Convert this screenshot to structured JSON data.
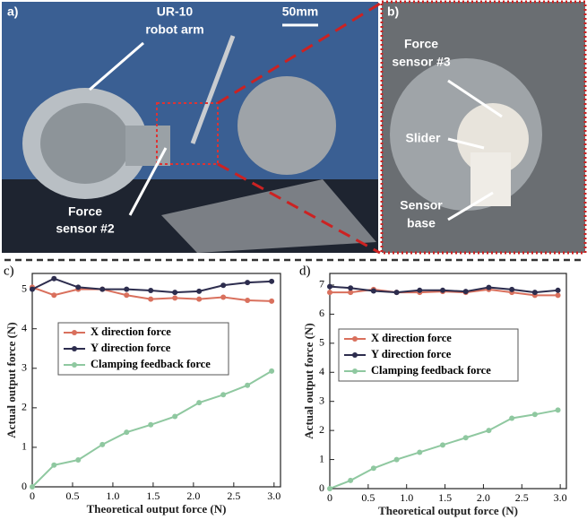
{
  "photos": {
    "panel_a": {
      "label": "a)",
      "arm_label": [
        "UR-10",
        "robot arm"
      ],
      "scale_bar": "50mm",
      "sensor_label": [
        "Force",
        "sensor #2"
      ]
    },
    "panel_b": {
      "label": "b)",
      "sensor_label": [
        "Force",
        "sensor #3"
      ],
      "slider": "Slider",
      "base_label": [
        "Sensor",
        "base"
      ]
    }
  },
  "chart_data": [
    {
      "type": "line",
      "panel_label": "c)",
      "xlabel": "Theoretical output force (N)",
      "ylabel": "Actual output force (N)",
      "x": [
        0,
        0.27,
        0.57,
        0.87,
        1.17,
        1.47,
        1.77,
        2.07,
        2.37,
        2.67,
        2.97
      ],
      "xlim": [
        0,
        3.08
      ],
      "xticks": [
        0,
        0.5,
        {
          "value": 1,
          "label": "1.0"
        },
        1.5,
        {
          "value": 2,
          "label": "2.0"
        },
        2.5,
        {
          "value": 3,
          "label": "3.0"
        }
      ],
      "ylim": [
        0,
        5.4
      ],
      "yticks": [
        0,
        1,
        2,
        3,
        4,
        5
      ],
      "series": [
        {
          "name": "X direction force",
          "color": "#d9705d",
          "values": [
            5.05,
            4.85,
            5.0,
            5.0,
            4.85,
            4.75,
            4.78,
            4.75,
            4.8,
            4.72,
            4.7
          ]
        },
        {
          "name": "Y direction force",
          "color": "#2d2d4e",
          "values": [
            5.0,
            5.27,
            5.05,
            5.0,
            5.0,
            4.97,
            4.92,
            4.95,
            5.1,
            5.17,
            5.2
          ]
        },
        {
          "name": "Clamping feedback force",
          "color": "#8fc8a0",
          "values": [
            0,
            0.55,
            0.68,
            1.07,
            1.38,
            1.57,
            1.78,
            2.13,
            2.33,
            2.57,
            2.93
          ]
        }
      ]
    },
    {
      "type": "line",
      "panel_label": "d)",
      "xlabel": "Theoretical output force (N)",
      "ylabel": "Actual output force (N)",
      "x": [
        0,
        0.27,
        0.57,
        0.87,
        1.17,
        1.47,
        1.77,
        2.07,
        2.37,
        2.67,
        2.97
      ],
      "xlim": [
        0,
        3.08
      ],
      "xticks": [
        0,
        0.5,
        {
          "value": 1,
          "label": "1.0"
        },
        1.5,
        {
          "value": 2,
          "label": "2.0"
        },
        2.5,
        {
          "value": 3,
          "label": "3.0"
        }
      ],
      "ylim": [
        0,
        7.4
      ],
      "yticks": [
        0,
        1,
        2,
        3,
        4,
        5,
        6,
        7
      ],
      "series": [
        {
          "name": "X direction force",
          "color": "#d9705d",
          "values": [
            6.75,
            6.75,
            6.85,
            6.75,
            6.75,
            6.78,
            6.75,
            6.85,
            6.75,
            6.65,
            6.65
          ]
        },
        {
          "name": "Y direction force",
          "color": "#2d2d4e",
          "values": [
            6.95,
            6.9,
            6.8,
            6.75,
            6.82,
            6.82,
            6.78,
            6.92,
            6.85,
            6.75,
            6.82
          ]
        },
        {
          "name": "Clamping feedback force",
          "color": "#8fc8a0",
          "values": [
            0,
            0.28,
            0.7,
            1.0,
            1.25,
            1.5,
            1.75,
            2.0,
            2.42,
            2.55,
            2.7
          ]
        }
      ]
    }
  ]
}
